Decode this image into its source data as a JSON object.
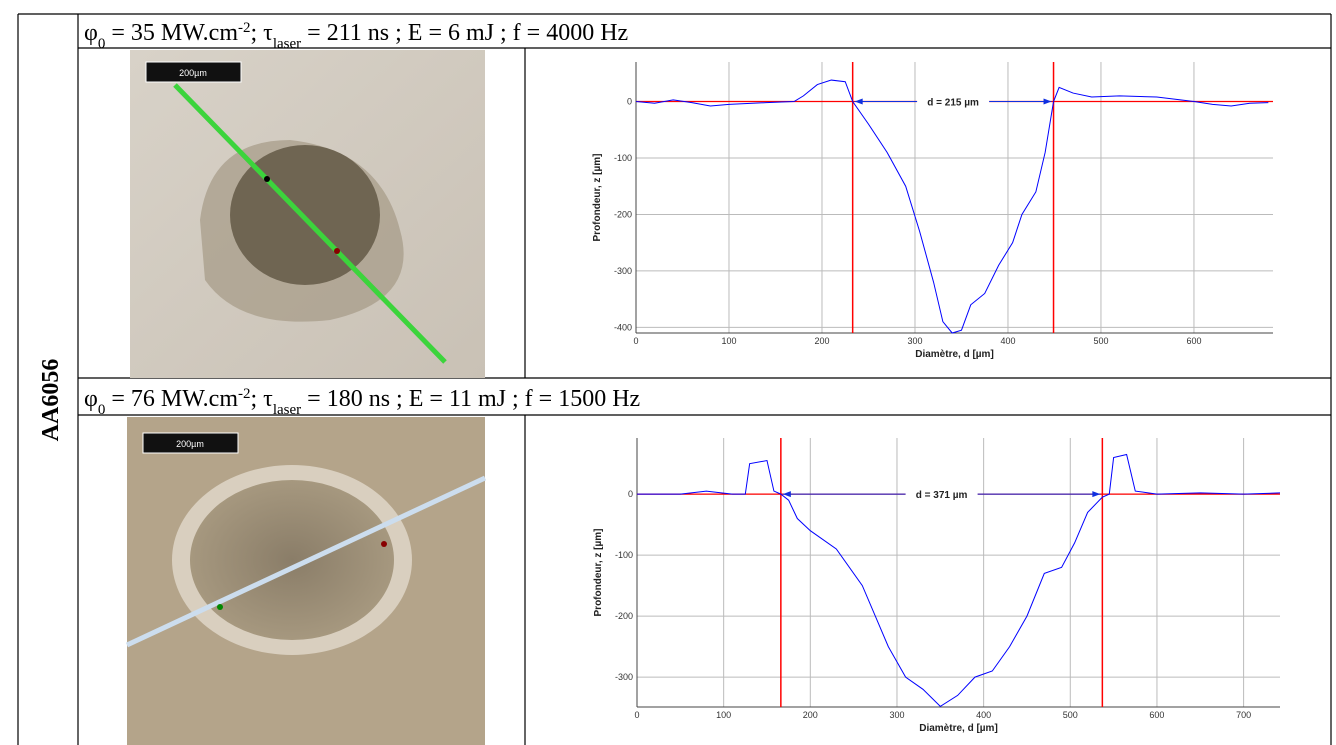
{
  "label": "AA6056",
  "rows": [
    {
      "header": [
        {
          "text": "φ"
        },
        {
          "text": "0",
          "pos": "sub"
        },
        {
          "text": " = 35 MW.cm"
        },
        {
          "text": "-2",
          "pos": "sup"
        },
        {
          "text": "; τ"
        },
        {
          "text": "laser",
          "pos": "sub"
        },
        {
          "text": " = 211 ns ; E = 6 mJ ; f = 4000 Hz"
        }
      ],
      "scale_bar": "200µm"
    },
    {
      "header": [
        {
          "text": "φ"
        },
        {
          "text": "0",
          "pos": "sub"
        },
        {
          "text": " = 76 MW.cm"
        },
        {
          "text": "-2",
          "pos": "sup"
        },
        {
          "text": "; τ"
        },
        {
          "text": "laser",
          "pos": "sub"
        },
        {
          "text": " = 180 ns ; E = 11 mJ ; f = 1500 Hz"
        }
      ],
      "scale_bar": "200µm"
    }
  ],
  "chart_data": [
    {
      "type": "line",
      "x_label": "Diamètre, d [µm]",
      "y_label": "Profondeur, z [µm]",
      "x": [
        0,
        20,
        40,
        60,
        80,
        100,
        140,
        170,
        180,
        195,
        210,
        225,
        233,
        250,
        270,
        290,
        305,
        320,
        330,
        340,
        350,
        360,
        375,
        390,
        405,
        415,
        430,
        440,
        449,
        455,
        470,
        490,
        520,
        560,
        600,
        620,
        640,
        660,
        680
      ],
      "values": [
        0,
        -3,
        3,
        -2,
        -8,
        -5,
        -2,
        0,
        10,
        30,
        38,
        35,
        0,
        -40,
        -90,
        -150,
        -230,
        -320,
        -390,
        -410,
        -405,
        -360,
        -340,
        -290,
        -250,
        -200,
        -160,
        -90,
        0,
        25,
        15,
        8,
        10,
        8,
        0,
        -5,
        -8,
        -3,
        -2
      ],
      "color": "#0000ff",
      "ref_color": "#ff0000",
      "ref_x": [
        233,
        449
      ],
      "ref_y": 0,
      "annotation": "d = 215 µm",
      "xlim": [
        0,
        685
      ],
      "ylim": [
        -410,
        70
      ],
      "xticks": [
        0,
        100,
        200,
        300,
        400,
        500,
        600
      ],
      "yticks": [
        0,
        -100,
        -200,
        -300,
        -400
      ],
      "grid": true
    },
    {
      "type": "line",
      "x_label": "Diamètre, d [µm]",
      "y_label": "Profondeur, z [µm]",
      "x": [
        0,
        50,
        80,
        110,
        125,
        130,
        150,
        158,
        166,
        175,
        185,
        200,
        230,
        260,
        290,
        310,
        330,
        350,
        370,
        390,
        410,
        430,
        450,
        470,
        490,
        505,
        520,
        537,
        545,
        550,
        565,
        575,
        600,
        650,
        700,
        742
      ],
      "values": [
        0,
        0,
        5,
        0,
        0,
        50,
        55,
        5,
        0,
        -10,
        -40,
        -60,
        -90,
        -150,
        -250,
        -300,
        -320,
        -348,
        -330,
        -300,
        -290,
        -250,
        -200,
        -130,
        -120,
        -80,
        -30,
        -5,
        0,
        60,
        65,
        5,
        0,
        2,
        0,
        2
      ],
      "color": "#0000ff",
      "ref_color": "#ff0000",
      "ref_x": [
        166,
        537
      ],
      "ref_y": 0,
      "annotation": "d = 371 µm",
      "xlim": [
        0,
        742
      ],
      "ylim": [
        -349,
        92
      ],
      "xticks": [
        0,
        100,
        200,
        300,
        400,
        500,
        600,
        700
      ],
      "yticks": [
        0,
        -100,
        -200,
        -300
      ],
      "grid": true
    }
  ]
}
